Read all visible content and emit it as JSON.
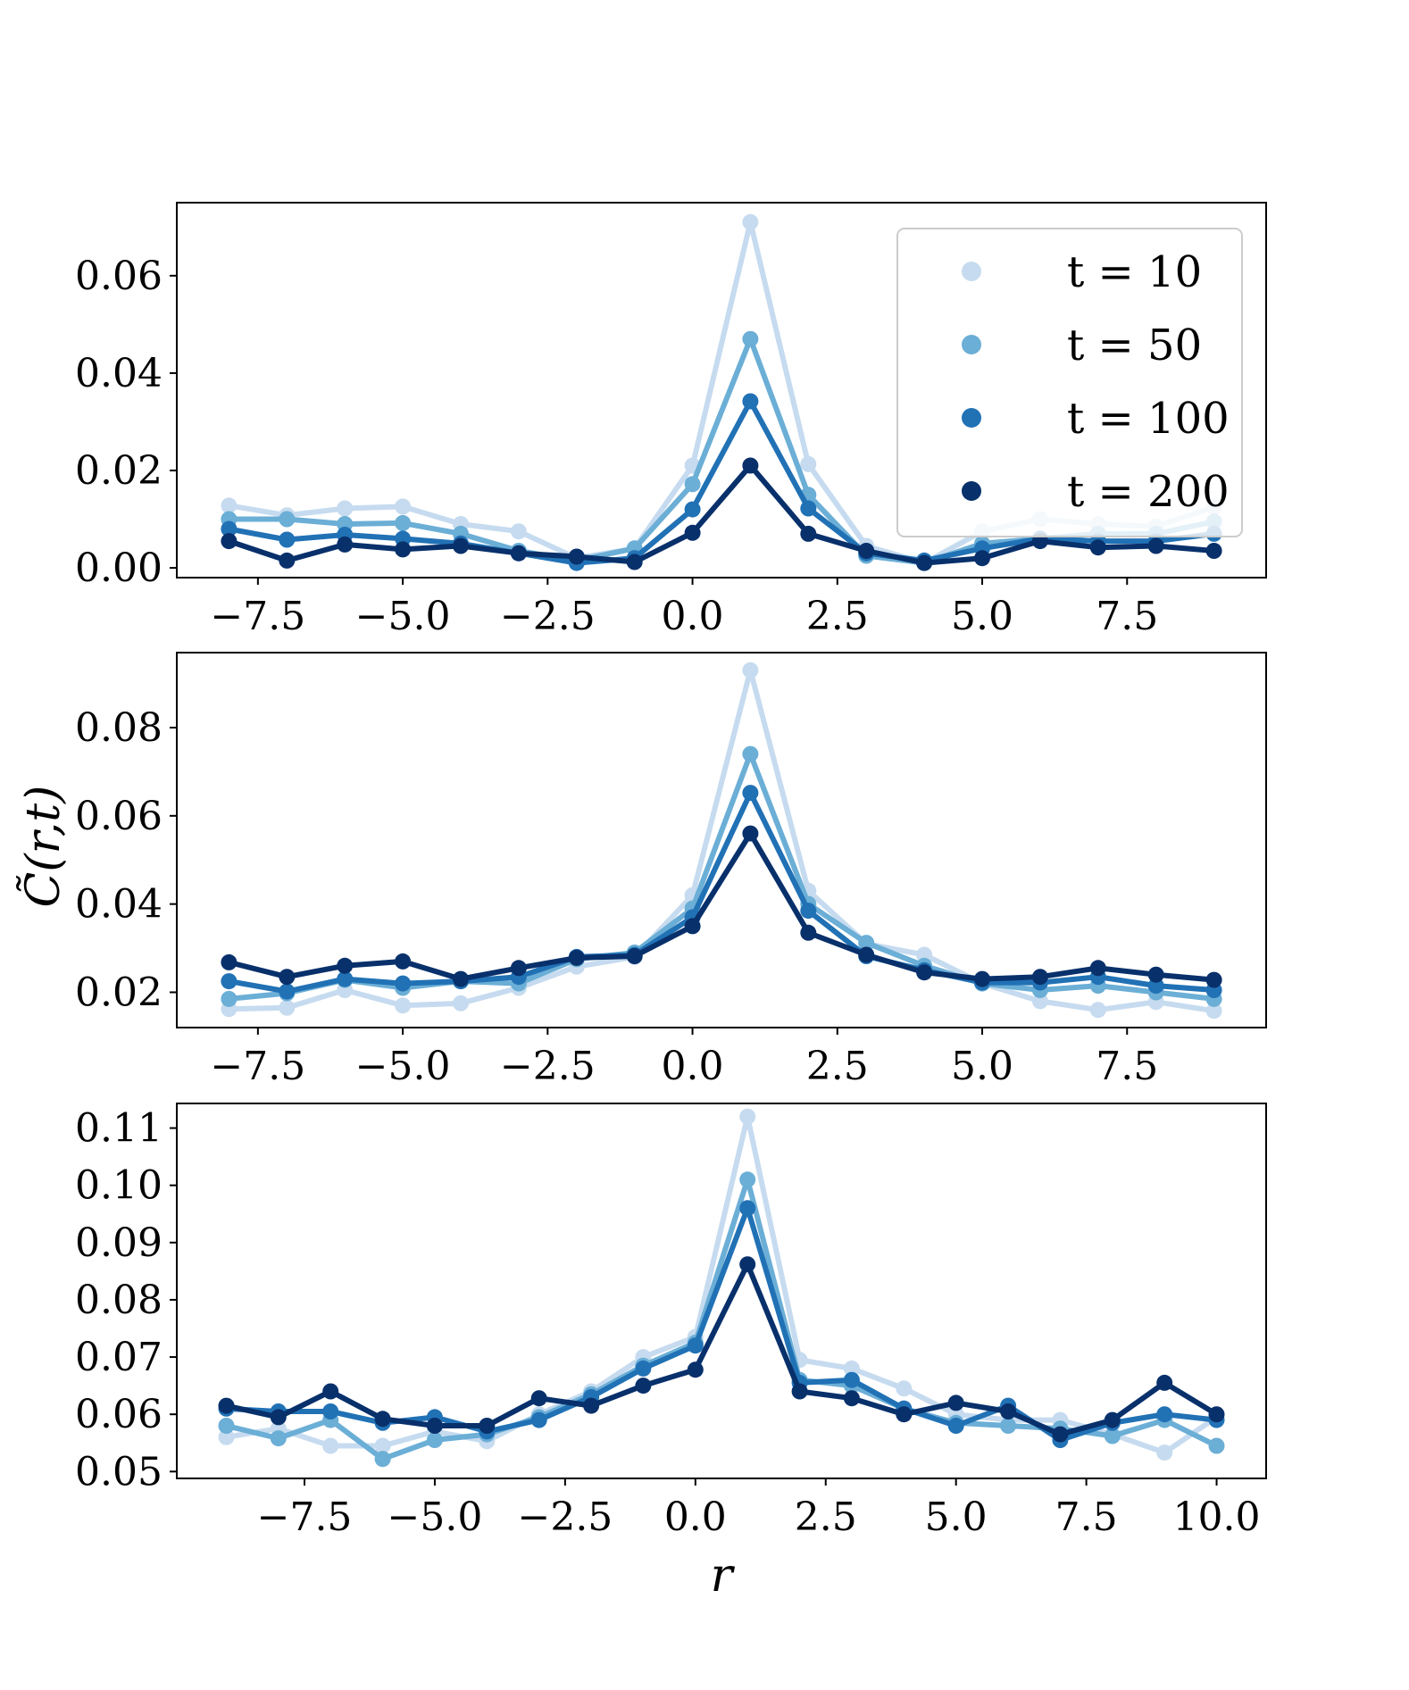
{
  "figure": {
    "ylabel": "C̃(r,t)",
    "xlabel": "r",
    "legend": {
      "placement": "top-right of top panel",
      "entries": [
        {
          "label": "t = 10",
          "color": "#c6dbef"
        },
        {
          "label": "t = 50",
          "color": "#6baed6"
        },
        {
          "label": "t = 100",
          "color": "#2171b5"
        },
        {
          "label": "t = 200",
          "color": "#08306b"
        }
      ]
    }
  },
  "chart_data": [
    {
      "type": "line",
      "panel": "top",
      "xlim": [
        -8.9,
        9.9
      ],
      "ylim": [
        -0.002,
        0.075
      ],
      "xticks": [
        -7.5,
        -5.0,
        -2.5,
        0.0,
        2.5,
        5.0,
        7.5
      ],
      "xtick_labels": [
        "−7.5",
        "−5.0",
        "−2.5",
        "0.0",
        "2.5",
        "5.0",
        "7.5"
      ],
      "yticks": [
        0.0,
        0.02,
        0.04,
        0.06
      ],
      "ytick_labels": [
        "0.00",
        "0.02",
        "0.04",
        "0.06"
      ],
      "x": [
        -8,
        -7,
        -6,
        -5,
        -4,
        -3,
        -2,
        -1,
        0,
        1,
        2,
        3,
        4,
        5,
        6,
        7,
        8,
        9
      ],
      "series": [
        {
          "name": "t = 10",
          "color": "#c6dbef",
          "values": [
            0.0128,
            0.0108,
            0.0122,
            0.0126,
            0.009,
            0.0075,
            0.002,
            0.004,
            0.021,
            0.071,
            0.0213,
            0.0045,
            0.001,
            0.0075,
            0.01,
            0.009,
            0.0085,
            0.0125
          ]
        },
        {
          "name": "t = 50",
          "color": "#6baed6",
          "values": [
            0.01,
            0.01,
            0.009,
            0.0092,
            0.007,
            0.0035,
            0.0015,
            0.004,
            0.0172,
            0.047,
            0.015,
            0.0025,
            0.001,
            0.005,
            0.006,
            0.007,
            0.007,
            0.0095
          ]
        },
        {
          "name": "t = 100",
          "color": "#2171b5",
          "values": [
            0.008,
            0.0058,
            0.0068,
            0.006,
            0.005,
            0.003,
            0.001,
            0.002,
            0.012,
            0.0342,
            0.0122,
            0.003,
            0.0015,
            0.004,
            0.006,
            0.0055,
            0.0055,
            0.007
          ]
        },
        {
          "name": "t = 200",
          "color": "#08306b",
          "values": [
            0.0055,
            0.0015,
            0.0048,
            0.0038,
            0.0045,
            0.003,
            0.0023,
            0.0012,
            0.0072,
            0.021,
            0.007,
            0.0035,
            0.001,
            0.002,
            0.0055,
            0.0042,
            0.0045,
            0.0035
          ]
        }
      ]
    },
    {
      "type": "line",
      "panel": "middle",
      "xlim": [
        -8.9,
        9.9
      ],
      "ylim": [
        0.012,
        0.097
      ],
      "xticks": [
        -7.5,
        -5.0,
        -2.5,
        0.0,
        2.5,
        5.0,
        7.5
      ],
      "xtick_labels": [
        "−7.5",
        "−5.0",
        "−2.5",
        "0.0",
        "2.5",
        "5.0",
        "7.5"
      ],
      "yticks": [
        0.02,
        0.04,
        0.06,
        0.08
      ],
      "ytick_labels": [
        "0.02",
        "0.04",
        "0.06",
        "0.08"
      ],
      "x": [
        -8,
        -7,
        -6,
        -5,
        -4,
        -3,
        -2,
        -1,
        0,
        1,
        2,
        3,
        4,
        5,
        6,
        7,
        8,
        9
      ],
      "series": [
        {
          "name": "t = 10",
          "color": "#c6dbef",
          "values": [
            0.0162,
            0.0165,
            0.0205,
            0.017,
            0.0175,
            0.021,
            0.0258,
            0.028,
            0.042,
            0.093,
            0.043,
            0.031,
            0.0285,
            0.022,
            0.018,
            0.016,
            0.0178,
            0.0158
          ]
        },
        {
          "name": "t = 50",
          "color": "#6baed6",
          "values": [
            0.0185,
            0.0198,
            0.0228,
            0.021,
            0.0225,
            0.022,
            0.0275,
            0.029,
            0.039,
            0.074,
            0.04,
            0.0312,
            0.026,
            0.022,
            0.0205,
            0.0215,
            0.02,
            0.0185
          ]
        },
        {
          "name": "t = 100",
          "color": "#2171b5",
          "values": [
            0.0225,
            0.0202,
            0.023,
            0.022,
            0.0225,
            0.0235,
            0.028,
            0.0285,
            0.037,
            0.0652,
            0.0385,
            0.0282,
            0.025,
            0.0222,
            0.0222,
            0.0235,
            0.0215,
            0.0205
          ]
        },
        {
          "name": "t = 200",
          "color": "#08306b",
          "values": [
            0.0268,
            0.0235,
            0.026,
            0.027,
            0.023,
            0.0255,
            0.0278,
            0.0282,
            0.035,
            0.056,
            0.0335,
            0.0285,
            0.0245,
            0.023,
            0.0235,
            0.0255,
            0.024,
            0.0228
          ]
        }
      ]
    },
    {
      "type": "line",
      "panel": "bottom",
      "xlim": [
        -9.95,
        10.95
      ],
      "ylim": [
        0.0488,
        0.1143
      ],
      "xticks": [
        -7.5,
        -5.0,
        -2.5,
        0.0,
        2.5,
        5.0,
        7.5,
        10.0
      ],
      "xtick_labels": [
        "−7.5",
        "−5.0",
        "−2.5",
        "0.0",
        "2.5",
        "5.0",
        "7.5",
        "10.0"
      ],
      "yticks": [
        0.05,
        0.06,
        0.07,
        0.08,
        0.09,
        0.1,
        0.11
      ],
      "ytick_labels": [
        "0.05",
        "0.06",
        "0.07",
        "0.08",
        "0.09",
        "0.10",
        "0.11"
      ],
      "x": [
        -9,
        -8,
        -7,
        -6,
        -5,
        -4,
        -3,
        -2,
        -1,
        0,
        1,
        2,
        3,
        4,
        5,
        6,
        7,
        8,
        9,
        10
      ],
      "series": [
        {
          "name": "t = 10",
          "color": "#c6dbef",
          "values": [
            0.056,
            0.0575,
            0.0545,
            0.0545,
            0.057,
            0.0553,
            0.06,
            0.064,
            0.07,
            0.0735,
            0.112,
            0.0695,
            0.068,
            0.0645,
            0.06,
            0.059,
            0.059,
            0.0565,
            0.0533,
            0.0595
          ]
        },
        {
          "name": "t = 50",
          "color": "#6baed6",
          "values": [
            0.058,
            0.0558,
            0.059,
            0.0522,
            0.0555,
            0.0565,
            0.0595,
            0.0635,
            0.0685,
            0.0725,
            0.101,
            0.066,
            0.065,
            0.061,
            0.0585,
            0.058,
            0.0575,
            0.0562,
            0.059,
            0.0545
          ]
        },
        {
          "name": "t = 100",
          "color": "#2171b5",
          "values": [
            0.061,
            0.0605,
            0.0605,
            0.0585,
            0.0595,
            0.057,
            0.059,
            0.063,
            0.068,
            0.072,
            0.096,
            0.0655,
            0.066,
            0.061,
            0.058,
            0.0615,
            0.0555,
            0.0585,
            0.06,
            0.059
          ]
        },
        {
          "name": "t = 200",
          "color": "#08306b",
          "values": [
            0.0615,
            0.0595,
            0.064,
            0.0592,
            0.058,
            0.058,
            0.0628,
            0.0615,
            0.065,
            0.0678,
            0.0862,
            0.064,
            0.0628,
            0.06,
            0.062,
            0.0605,
            0.0565,
            0.059,
            0.0655,
            0.06
          ]
        }
      ]
    }
  ]
}
